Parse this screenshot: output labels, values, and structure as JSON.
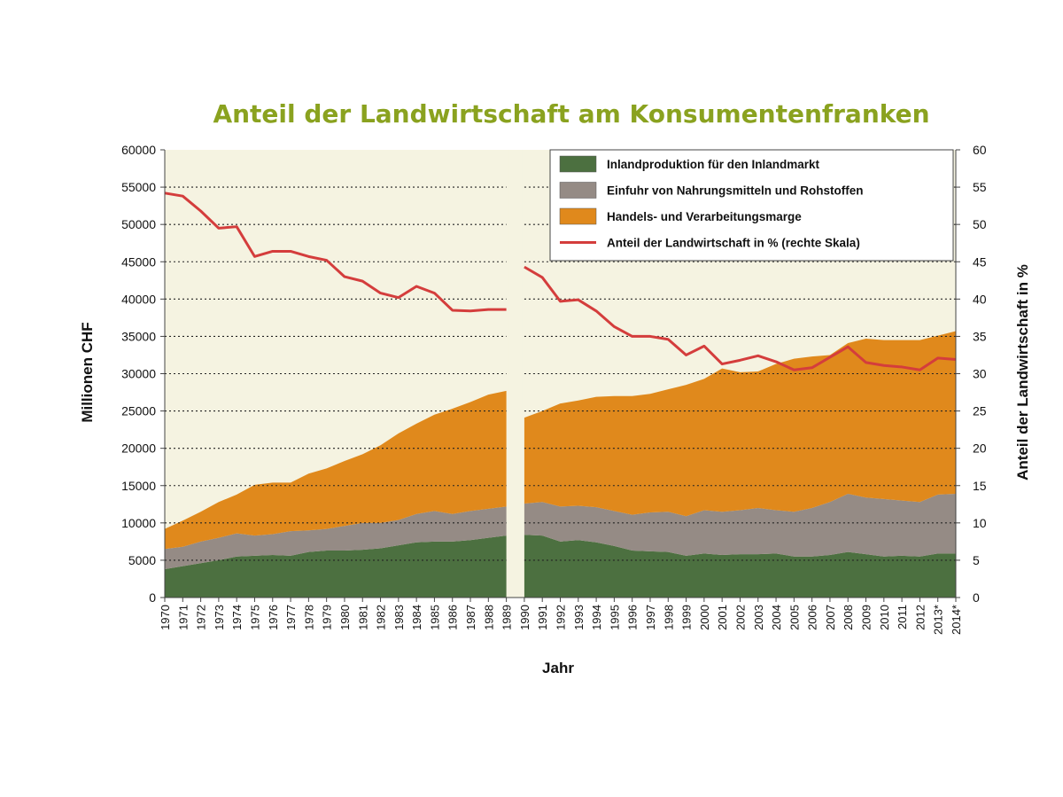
{
  "chart_data": {
    "type": "area",
    "title": "Anteil der Landwirtschaft am Konsumentenfranken",
    "xlabel": "Jahr",
    "ylabel": "Millionen CHF",
    "y2label": "Anteil der Landwirtschaft in %",
    "ylim": [
      0,
      60000
    ],
    "y2lim": [
      0,
      60
    ],
    "yticks": [
      0,
      5000,
      10000,
      15000,
      20000,
      25000,
      30000,
      35000,
      40000,
      45000,
      50000,
      55000,
      60000
    ],
    "y2ticks": [
      0,
      5,
      10,
      15,
      20,
      25,
      30,
      35,
      40,
      45,
      50,
      55,
      60
    ],
    "grid": "horizontal-dotted",
    "legend_position": "top-right",
    "x": [
      "1970",
      "1971",
      "1972",
      "1973",
      "1974",
      "1975",
      "1976",
      "1977",
      "1978",
      "1979",
      "1980",
      "1981",
      "1982",
      "1983",
      "1984",
      "1985",
      "1986",
      "1987",
      "1988",
      "1989",
      "1990",
      "1991",
      "1992",
      "1993",
      "1994",
      "1995",
      "1996",
      "1997",
      "1998",
      "1999",
      "2000",
      "2001",
      "2002",
      "2003",
      "2004",
      "2005",
      "2006",
      "2007",
      "2008",
      "2009",
      "2010",
      "2011",
      "2012",
      "2013*",
      "2014*"
    ],
    "gap_between": [
      "1989",
      "1990"
    ],
    "series": [
      {
        "name": "Inlandproduktion für den Inlandmarkt",
        "kind": "area",
        "axis": "left",
        "color": "#4c7040",
        "values": [
          3800,
          4200,
          4600,
          5000,
          5500,
          5600,
          5700,
          5600,
          6100,
          6300,
          6300,
          6400,
          6600,
          7000,
          7400,
          7500,
          7500,
          7700,
          8000,
          8300,
          8400,
          8300,
          7500,
          7700,
          7400,
          6900,
          6300,
          6200,
          6100,
          5600,
          5900,
          5700,
          5800,
          5800,
          5900,
          5500,
          5500,
          5700,
          6100,
          5800,
          5500,
          5600,
          5500,
          5900,
          5900
        ]
      },
      {
        "name": "Einfuhr von Nahrungsmitteln und Rohstoffen",
        "kind": "area",
        "axis": "left",
        "color": "#958b85",
        "values": [
          2700,
          2600,
          2900,
          3000,
          3100,
          2700,
          2800,
          3300,
          2900,
          2900,
          3300,
          3600,
          3400,
          3400,
          3800,
          4100,
          3700,
          3900,
          3900,
          3900,
          4200,
          4500,
          4700,
          4600,
          4700,
          4700,
          4800,
          5200,
          5400,
          5300,
          5800,
          5800,
          5900,
          6200,
          5800,
          6000,
          6500,
          7100,
          7800,
          7600,
          7700,
          7400,
          7300,
          7900,
          8000
        ]
      },
      {
        "name": "Handels- und Verarbeitungsmarge",
        "kind": "area",
        "axis": "left",
        "color": "#e0891c",
        "values": [
          2700,
          3500,
          4000,
          4800,
          5200,
          6800,
          6900,
          6500,
          7600,
          8100,
          8700,
          9200,
          10400,
          11600,
          12100,
          12900,
          14100,
          14600,
          15300,
          15500,
          11500,
          12200,
          13800,
          14100,
          14800,
          15400,
          15900,
          15900,
          16400,
          17600,
          17600,
          19200,
          18500,
          18300,
          19600,
          20500,
          20300,
          19700,
          20200,
          21300,
          21300,
          21500,
          21700,
          21300,
          21800
        ]
      },
      {
        "name": "Anteil der Landwirtschaft in % (rechte Skala)",
        "kind": "line",
        "axis": "right",
        "color": "#d43d3c",
        "values": [
          54.2,
          53.8,
          51.8,
          49.5,
          49.7,
          45.7,
          46.4,
          46.4,
          45.7,
          45.2,
          43.0,
          42.4,
          40.8,
          40.2,
          41.7,
          40.8,
          38.5,
          38.4,
          38.6,
          38.6,
          44.3,
          42.9,
          39.7,
          39.9,
          38.4,
          36.3,
          35.0,
          35.0,
          34.6,
          32.5,
          33.7,
          31.3,
          31.8,
          32.4,
          31.6,
          30.5,
          30.8,
          32.2,
          33.6,
          31.5,
          31.1,
          30.9,
          30.5,
          32.1,
          31.9
        ]
      }
    ]
  }
}
